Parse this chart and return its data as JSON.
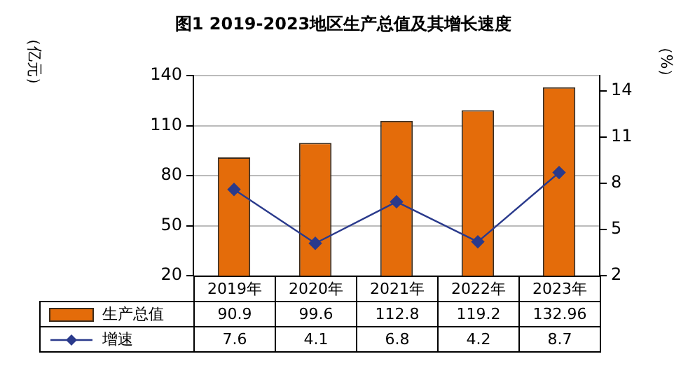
{
  "chart_data": {
    "type": "bar",
    "title": "图1 2019-2023地区生产总值及其增长速度",
    "y2label": "（%）",
    "annotations": [
      "（亿元）"
    ],
    "categories": [
      "2019年",
      "2020年",
      "2021年",
      "2022年",
      "2023年"
    ],
    "series": [
      {
        "name": "生产总值",
        "color": "#e46c0a",
        "values": [
          90.9,
          99.6,
          112.8,
          119.2,
          132.96
        ]
      },
      {
        "name": "增速",
        "type": "line",
        "axis": "y2",
        "color": "#2a3a8c",
        "values": [
          7.6,
          4.1,
          6.8,
          4.2,
          8.7
        ]
      }
    ],
    "ylim": [
      20,
      140
    ],
    "yticks": [
      20,
      50,
      80,
      110,
      140
    ],
    "y2lim": [
      2,
      15
    ],
    "y2ticks": [
      2,
      5,
      8,
      11,
      14
    ],
    "grid": "y",
    "legend": "bottom left",
    "marker": "diamond",
    "line_style": "solid",
    "data_labels": true
  }
}
